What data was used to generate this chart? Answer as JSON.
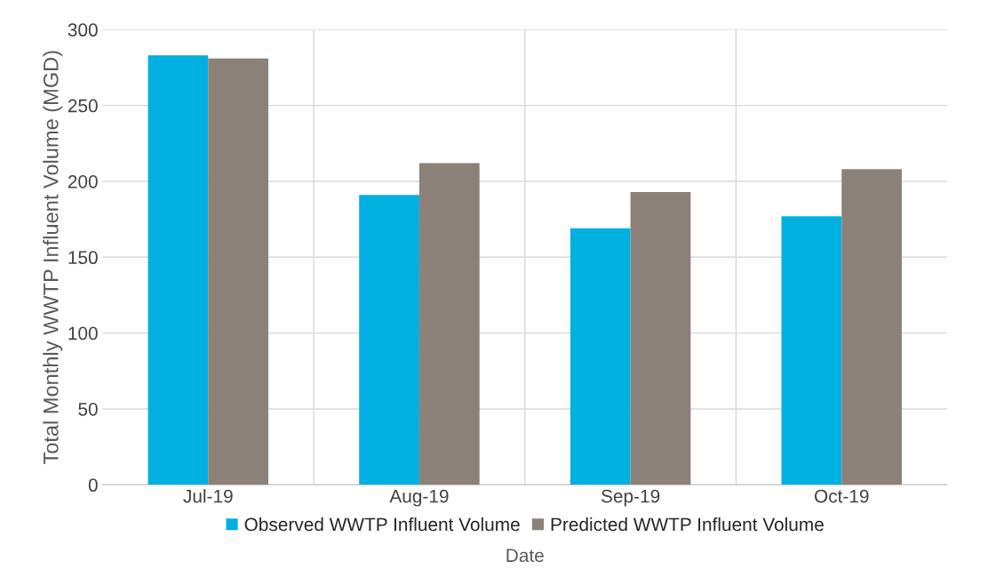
{
  "chart_data": {
    "type": "bar",
    "xlabel": "Date",
    "ylabel": "Total Monthly WWTP Influent Volume (MGD)",
    "categories": [
      "Jul-19",
      "Aug-19",
      "Sep-19",
      "Oct-19"
    ],
    "series": [
      {
        "name": "Observed WWTP Influent Volume",
        "color": "#00b0e0",
        "values": [
          283,
          191,
          169,
          177
        ]
      },
      {
        "name": "Predicted WWTP Influent Volume",
        "color": "#8b8178",
        "values": [
          281,
          212,
          193,
          208
        ]
      }
    ],
    "ylim": [
      0,
      300
    ],
    "yticks": [
      0,
      50,
      100,
      150,
      200,
      250,
      300
    ],
    "grid": true,
    "legend": "bottom"
  }
}
